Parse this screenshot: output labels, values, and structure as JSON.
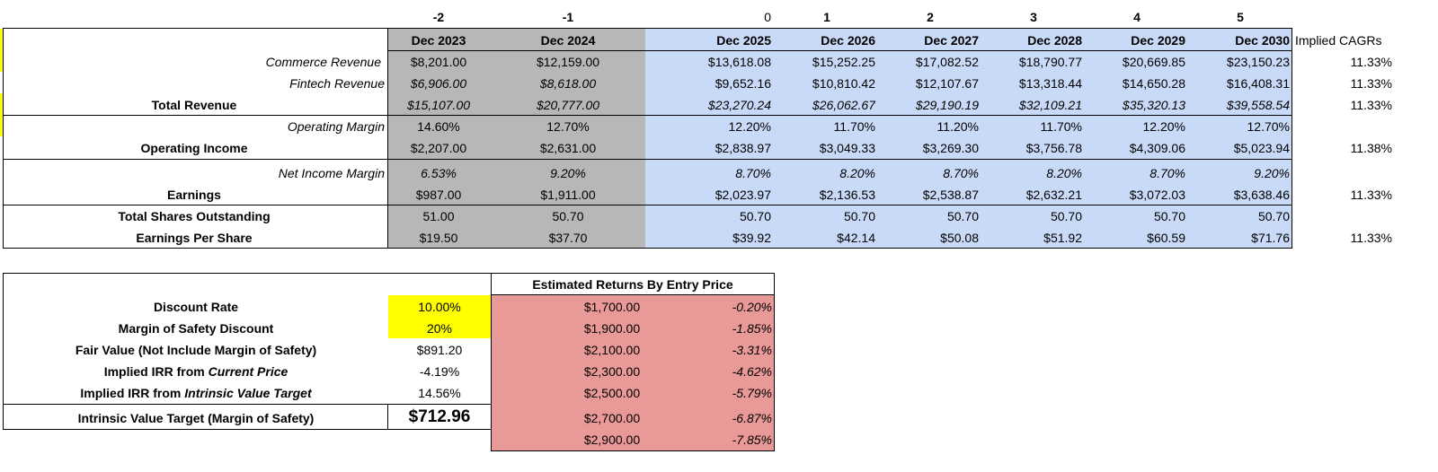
{
  "period_offsets": [
    "-2",
    "-1",
    "0",
    "1",
    "2",
    "3",
    "4",
    "5"
  ],
  "columns": [
    "Dec 2023",
    "Dec 2024",
    "Dec 2025",
    "Dec 2026",
    "Dec 2027",
    "Dec 2028",
    "Dec 2029",
    "Dec 2030"
  ],
  "cagr_header": "Implied CAGRs",
  "rows": [
    {
      "label": "Commerce Revenue",
      "values": [
        "$8,201.00",
        "$12,159.00",
        "$13,618.08",
        "$15,252.25",
        "$17,082.52",
        "$18,790.77",
        "$20,669.85",
        "$23,150.23"
      ],
      "cagr": "11.33%"
    },
    {
      "label": "Fintech Revenue",
      "values": [
        "$6,906.00",
        "$8,618.00",
        "$9,652.16",
        "$10,810.42",
        "$12,107.67",
        "$13,318.44",
        "$14,650.28",
        "$16,408.31"
      ],
      "cagr": "11.33%"
    },
    {
      "label": "Total Revenue",
      "values": [
        "$15,107.00",
        "$20,777.00",
        "$23,270.24",
        "$26,062.67",
        "$29,190.19",
        "$32,109.21",
        "$35,320.13",
        "$39,558.54"
      ],
      "cagr": "11.33%"
    },
    {
      "label": "Operating Margin",
      "values": [
        "14.60%",
        "12.70%",
        "12.20%",
        "11.70%",
        "11.20%",
        "11.70%",
        "12.20%",
        "12.70%"
      ],
      "cagr": ""
    },
    {
      "label": "Operating Income",
      "values": [
        "$2,207.00",
        "$2,631.00",
        "$2,838.97",
        "$3,049.33",
        "$3,269.30",
        "$3,756.78",
        "$4,309.06",
        "$5,023.94"
      ],
      "cagr": "11.38%"
    },
    {
      "label": "Net Income Margin",
      "values": [
        "6.53%",
        "9.20%",
        "8.70%",
        "8.20%",
        "8.70%",
        "8.20%",
        "8.70%",
        "9.20%"
      ],
      "cagr": ""
    },
    {
      "label": "Earnings",
      "values": [
        "$987.00",
        "$1,911.00",
        "$2,023.97",
        "$2,136.53",
        "$2,538.87",
        "$2,632.21",
        "$3,072.03",
        "$3,638.46"
      ],
      "cagr": "11.33%"
    },
    {
      "label": "Total Shares Outstanding",
      "values": [
        "51.00",
        "50.70",
        "50.70",
        "50.70",
        "50.70",
        "50.70",
        "50.70",
        "50.70"
      ],
      "cagr": ""
    },
    {
      "label": "Earnings Per Share",
      "values": [
        "$19.50",
        "$37.70",
        "$39.92",
        "$42.14",
        "$50.08",
        "$51.92",
        "$60.59",
        "$71.76"
      ],
      "cagr": "11.33%"
    }
  ],
  "valuation": {
    "items": [
      {
        "label": "Discount Rate",
        "value": "10.00%"
      },
      {
        "label": "Margin of Safety Discount",
        "value": "20%"
      },
      {
        "label": "Fair Value (Not Include Margin of Safety)",
        "value": "$891.20"
      },
      {
        "label_main": "Implied IRR from ",
        "label_em": "Current Price",
        "value": "-4.19%"
      },
      {
        "label_main": "Implied IRR from ",
        "label_em": "Intrinsic Value Target",
        "value": "14.56%"
      }
    ],
    "target_label": "Intrinsic Value Target (Margin of Safety)",
    "target_value": "$712.96"
  },
  "returns": {
    "title": "Estimated Returns By Entry Price",
    "rows": [
      {
        "price": "$1,700.00",
        "ret": "-0.20%"
      },
      {
        "price": "$1,900.00",
        "ret": "-1.85%"
      },
      {
        "price": "$2,100.00",
        "ret": "-3.31%"
      },
      {
        "price": "$2,300.00",
        "ret": "-4.62%"
      },
      {
        "price": "$2,500.00",
        "ret": "-5.79%"
      },
      {
        "price": "$2,700.00",
        "ret": "-6.87%"
      },
      {
        "price": "$2,900.00",
        "ret": "-7.85%"
      }
    ]
  },
  "colors": {
    "historical_fill": "#b7b7b7",
    "projection_fill": "#c9daf8",
    "returns_fill": "#ea9999",
    "input_highlight": "#ffff00"
  }
}
